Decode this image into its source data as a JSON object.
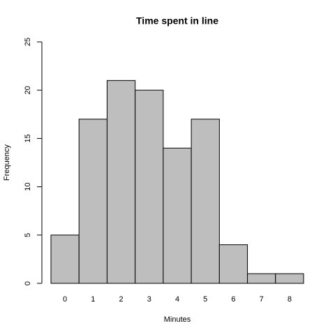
{
  "chart_data": {
    "type": "bar",
    "title": "Time spent in line",
    "x_label": "Minutes",
    "y_label": "Frequency",
    "categories": [
      "0",
      "1",
      "2",
      "3",
      "4",
      "5",
      "6",
      "7",
      "8"
    ],
    "values": [
      5,
      17,
      21,
      20,
      14,
      17,
      4,
      1,
      1
    ],
    "color": "#bebebe",
    "ylim": [
      0,
      25
    ],
    "yticks": [
      0,
      5,
      10,
      15,
      20,
      25
    ]
  }
}
